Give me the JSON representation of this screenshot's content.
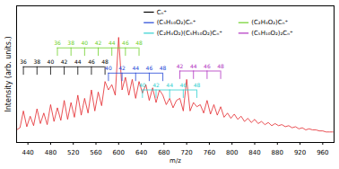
{
  "chart_data": {
    "type": "line",
    "x_label": "m/z",
    "y_label": "Intensity (arb. units.)",
    "xlim": [
      420,
      980
    ],
    "xticks": [
      440,
      480,
      520,
      560,
      600,
      640,
      680,
      720,
      760,
      800,
      840,
      880,
      920,
      960
    ],
    "ylim": [
      0,
      1.3
    ],
    "tick_labels": "x",
    "color": "#e3262b",
    "x": [
      420,
      426,
      432,
      438,
      444,
      450,
      456,
      462,
      468,
      474,
      480,
      486,
      492,
      498,
      504,
      510,
      516,
      522,
      528,
      534,
      540,
      546,
      552,
      558,
      564,
      570,
      576,
      582,
      588,
      594,
      600,
      606,
      612,
      618,
      624,
      630,
      636,
      642,
      648,
      654,
      660,
      666,
      672,
      678,
      684,
      690,
      696,
      702,
      708,
      714,
      720,
      726,
      732,
      738,
      744,
      750,
      756,
      762,
      768,
      774,
      780,
      786,
      792,
      798,
      804,
      810,
      816,
      822,
      828,
      834,
      840,
      846,
      852,
      858,
      864,
      870,
      876,
      882,
      888,
      894,
      900,
      906,
      912,
      918,
      924,
      930,
      936,
      942,
      948,
      954,
      960,
      966,
      972,
      978
    ],
    "values": [
      0.12,
      0.14,
      0.3,
      0.15,
      0.25,
      0.16,
      0.32,
      0.18,
      0.28,
      0.17,
      0.36,
      0.2,
      0.33,
      0.21,
      0.4,
      0.22,
      0.38,
      0.24,
      0.45,
      0.26,
      0.42,
      0.28,
      0.5,
      0.3,
      0.48,
      0.35,
      0.58,
      0.5,
      0.55,
      0.45,
      1.0,
      0.5,
      0.62,
      0.45,
      0.6,
      0.42,
      0.58,
      0.47,
      0.55,
      0.4,
      0.52,
      0.38,
      0.5,
      0.45,
      0.36,
      0.42,
      0.33,
      0.4,
      0.42,
      0.3,
      0.6,
      0.3,
      0.38,
      0.34,
      0.36,
      0.28,
      0.4,
      0.27,
      0.36,
      0.26,
      0.34,
      0.24,
      0.28,
      0.23,
      0.27,
      0.22,
      0.25,
      0.2,
      0.23,
      0.19,
      0.22,
      0.18,
      0.2,
      0.17,
      0.19,
      0.16,
      0.18,
      0.16,
      0.17,
      0.15,
      0.16,
      0.14,
      0.15,
      0.13,
      0.14,
      0.12,
      0.13,
      0.12,
      0.12,
      0.11,
      0.11,
      0.1,
      0.1,
      0.1
    ],
    "annotations": [
      {
        "name": "Cₙ⁺",
        "color": "#000000",
        "x": [
          432,
          456,
          480,
          504,
          528,
          552,
          576
        ],
        "labels": [
          "36",
          "38",
          "40",
          "42",
          "44",
          "46",
          "48"
        ]
      },
      {
        "name": "(C₅H₁₀O₂)Cₙ⁺",
        "color": "#2346d6",
        "x": [
          582,
          606,
          630,
          654,
          678
        ],
        "labels": [
          "40",
          "42",
          "44",
          "46",
          "48"
        ]
      },
      {
        "name": "(C₂H₄O₂)Cₙ⁺",
        "color": "#6fd02a",
        "x": [
          492,
          516,
          540,
          564,
          588,
          612,
          636
        ],
        "labels": [
          "36",
          "38",
          "40",
          "42",
          "44",
          "46",
          "48"
        ]
      },
      {
        "name": "(C₂H₄O₂)(C₅H₁₀O₂)Cₙ⁺",
        "color": "#30d0d0",
        "x": [
          642,
          666,
          690,
          714,
          738
        ],
        "labels": [
          "40",
          "42",
          "44",
          "46",
          "48"
        ]
      },
      {
        "name": "(C₅H₁₀O₂)₂Cₙ⁺",
        "color": "#b030c0",
        "x": [
          708,
          732,
          756,
          780
        ],
        "labels": [
          "42",
          "44",
          "46",
          "48"
        ]
      }
    ]
  }
}
